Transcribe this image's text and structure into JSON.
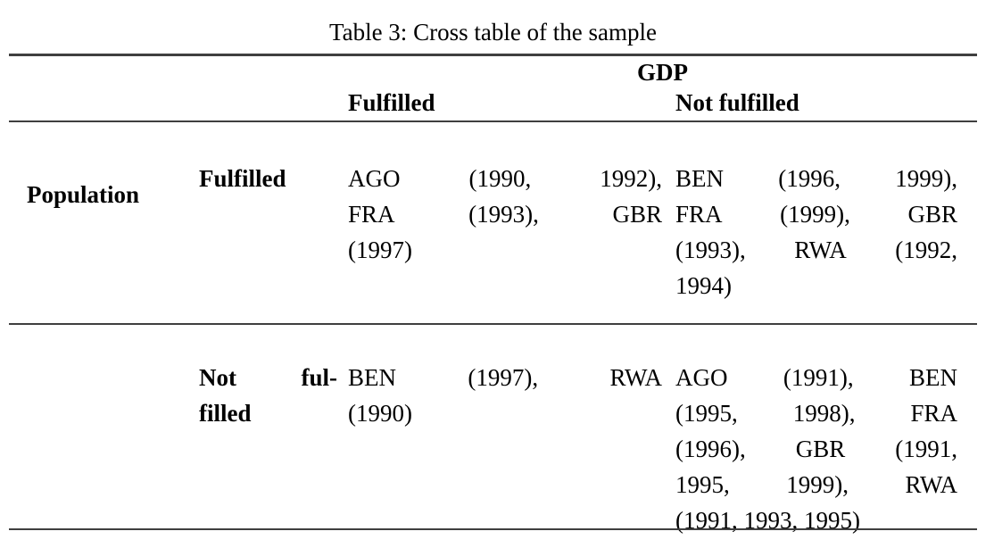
{
  "page": {
    "title": "Table 3: Cross table of the sample"
  },
  "table": {
    "group_column_header": "GDP",
    "group_row_header": "Population",
    "column_headers": [
      "Fulfilled",
      "Not fulfilled"
    ],
    "rows": [
      {
        "label_text": "Fulfilled",
        "label_lines": [
          "Fulfilled"
        ],
        "cells": [
          {
            "text": "AGO (1990, 1992), FRA (1993), GBR (1997)",
            "lines": [
              "AGO (1990, 1992),",
              "FRA (1993), GBR",
              "(1997)"
            ]
          },
          {
            "text": "BEN (1996, 1999), FRA (1999), GBR (1993), RWA (1992, 1994)",
            "lines": [
              "BEN (1996, 1999),",
              "FRA (1999), GBR",
              "(1993), RWA (1992,",
              "1994)"
            ]
          }
        ]
      },
      {
        "label_text": "Not fulfilled",
        "label_lines": [
          "Not ful-",
          "filled"
        ],
        "cells": [
          {
            "text": "BEN (1997), RWA (1990)",
            "lines": [
              "BEN (1997), RWA",
              "(1990)"
            ]
          },
          {
            "text": "AGO (1991), BEN (1995, 1998), FRA (1996), GBR (1991, 1995, 1999), RWA (1991, 1993, 1995)",
            "lines": [
              "AGO (1991), BEN",
              "(1995, 1998), FRA",
              "(1996), GBR (1991,",
              "1995, 1999), RWA",
              "(1991, 1993, 1995)"
            ]
          }
        ]
      }
    ]
  },
  "colors": {
    "text": "#000000",
    "rule": "#3f3f3f",
    "background": "#ffffff"
  }
}
